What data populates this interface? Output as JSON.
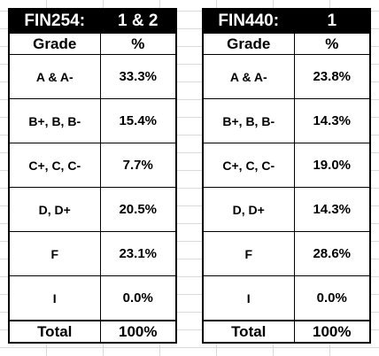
{
  "tables": [
    {
      "course": "FIN254:",
      "sections": "1 & 2",
      "headers": {
        "grade": "Grade",
        "percent": "%"
      },
      "rows": [
        {
          "grade": "A & A-",
          "percent": "33.3%"
        },
        {
          "grade": "B+, B, B-",
          "percent": "15.4%"
        },
        {
          "grade": "C+, C, C-",
          "percent": "7.7%"
        },
        {
          "grade": "D, D+",
          "percent": "20.5%"
        },
        {
          "grade": "F",
          "percent": "23.1%"
        },
        {
          "grade": "I",
          "percent": "0.0%"
        }
      ],
      "total": {
        "label": "Total",
        "percent": "100%"
      }
    },
    {
      "course": "FIN440:",
      "sections": "1",
      "headers": {
        "grade": "Grade",
        "percent": "%"
      },
      "rows": [
        {
          "grade": "A & A-",
          "percent": "23.8%"
        },
        {
          "grade": "B+, B, B-",
          "percent": "14.3%"
        },
        {
          "grade": "C+, C, C-",
          "percent": "19.0%"
        },
        {
          "grade": "D, D+",
          "percent": "14.3%"
        },
        {
          "grade": "F",
          "percent": "28.6%"
        },
        {
          "grade": "I",
          "percent": "0.0%"
        }
      ],
      "total": {
        "label": "Total",
        "percent": "100%"
      }
    }
  ]
}
